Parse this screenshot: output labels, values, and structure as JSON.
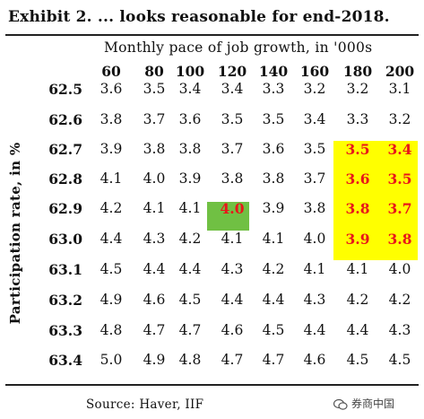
{
  "title": "Exhibit 2. ... looks reasonable for end-2018.",
  "subheader": "Monthly pace of job growth, in '000s",
  "ylabel": "Participation rate, in %",
  "source": "Source: Haver, IIF",
  "watermark": "券商中国",
  "colors": {
    "highlight_yellow": "#ffff00",
    "highlight_green": "#70c043",
    "highlight_text_red": "#e8161a"
  },
  "chart_data": {
    "type": "table",
    "title": "Exhibit 2. ... looks reasonable for end-2018.",
    "xlabel": "Monthly pace of job growth, in '000s",
    "ylabel": "Participation rate, in %",
    "columns": [
      "60",
      "80",
      "100",
      "120",
      "140",
      "160",
      "180",
      "200"
    ],
    "rows": [
      "62.5",
      "62.6",
      "62.7",
      "62.8",
      "62.9",
      "63.0",
      "63.1",
      "63.2",
      "63.3",
      "63.4"
    ],
    "values": [
      [
        "3.6",
        "3.5",
        "3.4",
        "3.4",
        "3.3",
        "3.2",
        "3.2",
        "3.1"
      ],
      [
        "3.8",
        "3.7",
        "3.6",
        "3.5",
        "3.5",
        "3.4",
        "3.3",
        "3.2"
      ],
      [
        "3.9",
        "3.8",
        "3.8",
        "3.7",
        "3.6",
        "3.5",
        "3.5",
        "3.4"
      ],
      [
        "4.1",
        "4.0",
        "3.9",
        "3.8",
        "3.8",
        "3.7",
        "3.6",
        "3.5"
      ],
      [
        "4.2",
        "4.1",
        "4.1",
        "4.0",
        "3.9",
        "3.8",
        "3.8",
        "3.7"
      ],
      [
        "4.4",
        "4.3",
        "4.2",
        "4.1",
        "4.1",
        "4.0",
        "3.9",
        "3.8"
      ],
      [
        "4.5",
        "4.4",
        "4.4",
        "4.3",
        "4.2",
        "4.1",
        "4.1",
        "4.0"
      ],
      [
        "4.9",
        "4.6",
        "4.5",
        "4.4",
        "4.4",
        "4.3",
        "4.2",
        "4.2"
      ],
      [
        "4.8",
        "4.7",
        "4.7",
        "4.6",
        "4.5",
        "4.4",
        "4.4",
        "4.3"
      ],
      [
        "5.0",
        "4.9",
        "4.8",
        "4.7",
        "4.7",
        "4.6",
        "4.5",
        "4.5"
      ]
    ],
    "highlighted_yellow": [
      [
        2,
        6
      ],
      [
        2,
        7
      ],
      [
        3,
        6
      ],
      [
        3,
        7
      ],
      [
        4,
        6
      ],
      [
        4,
        7
      ],
      [
        5,
        6
      ],
      [
        5,
        7
      ]
    ],
    "highlighted_green": [
      [
        4,
        3
      ]
    ]
  }
}
